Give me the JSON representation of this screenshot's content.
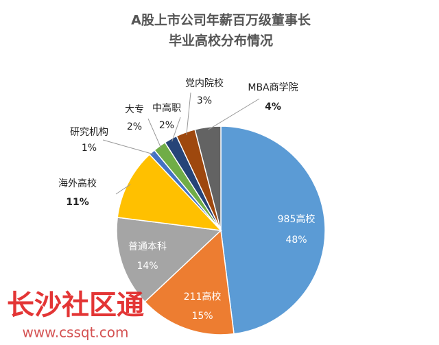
{
  "chart_data": {
    "type": "pie",
    "title": [
      "A股上市公司年薪百万级董事长",
      "毕业高校分布情况"
    ],
    "categories": [
      "985高校",
      "211高校",
      "普通本科",
      "海外高校",
      "研究机构",
      "大专",
      "中高职",
      "党内院校",
      "MBA商学院"
    ],
    "values": [
      48,
      15,
      14,
      11,
      1,
      2,
      2,
      3,
      4
    ],
    "value_labels": [
      "48%",
      "15%",
      "14%",
      "11%",
      "1%",
      "2%",
      "2%",
      "3%",
      "4%"
    ],
    "colors": [
      "#5b9bd5",
      "#ed7d31",
      "#a5a5a5",
      "#ffc000",
      "#4472c4",
      "#70ad47",
      "#264478",
      "#9e480e",
      "#636363"
    ],
    "watermark": [
      "长沙社区通",
      "www.cssqt.com"
    ]
  }
}
